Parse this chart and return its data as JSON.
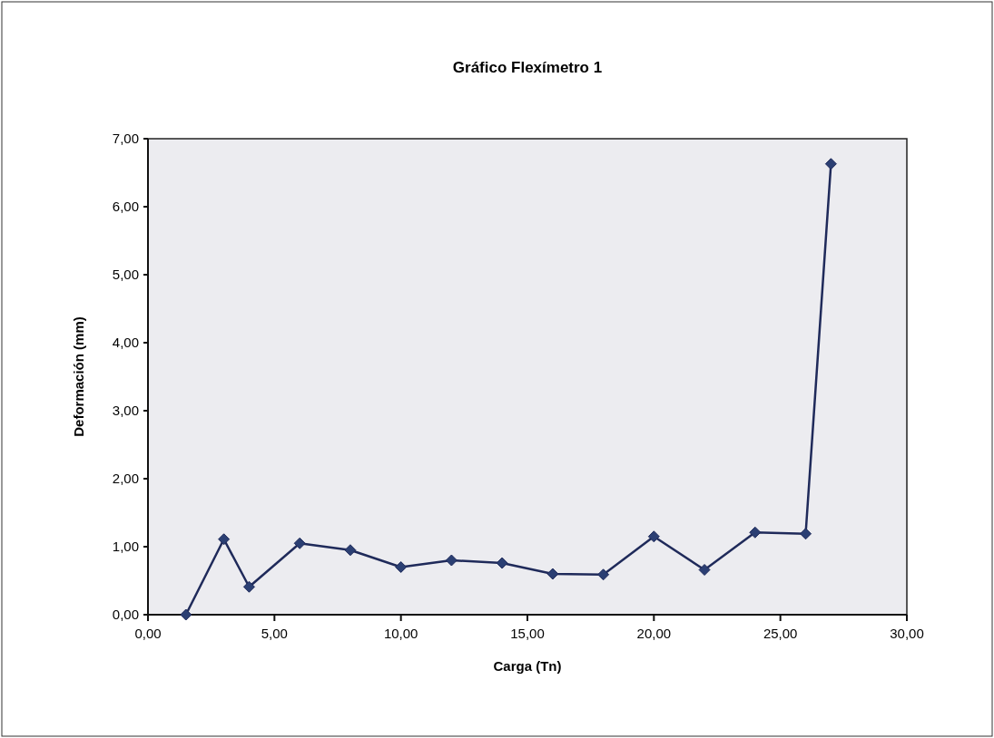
{
  "chart_data": {
    "type": "line",
    "title": "Gráfico Flexímetro 1",
    "xlabel": "Carga (Tn)",
    "ylabel": "Deformación (mm)",
    "x": [
      1.5,
      3,
      4,
      6,
      8,
      10,
      12,
      14,
      16,
      18,
      20,
      22,
      24,
      26,
      27
    ],
    "series": [
      {
        "color": "#1f2a5a",
        "values": [
          0,
          1.11,
          0.41,
          1.05,
          0.95,
          0.7,
          0.8,
          0.76,
          0.6,
          0.59,
          1.15,
          0.66,
          1.21,
          1.19,
          6.63
        ]
      }
    ],
    "xlim": [
      0,
      30
    ],
    "xticks": [
      {
        "value": 0,
        "label": "0,00"
      },
      {
        "value": 5,
        "label": "5,00"
      },
      {
        "value": 10,
        "label": "10,00"
      },
      {
        "value": 15,
        "label": "15,00"
      },
      {
        "value": 20,
        "label": "20,00"
      },
      {
        "value": 25,
        "label": "25,00"
      },
      {
        "value": 30,
        "label": "30,00"
      }
    ],
    "ylim": [
      0,
      7
    ],
    "yticks": [
      {
        "value": 0,
        "label": "0,00"
      },
      {
        "value": 1,
        "label": "1,00"
      },
      {
        "value": 2,
        "label": "2,00"
      },
      {
        "value": 3,
        "label": "3,00"
      },
      {
        "value": 4,
        "label": "4,00"
      },
      {
        "value": 5,
        "label": "5,00"
      },
      {
        "value": 6,
        "label": "6,00"
      },
      {
        "value": 7,
        "label": "7,00"
      }
    ],
    "marker": "diamond",
    "line_style": "solid",
    "grid": false
  }
}
